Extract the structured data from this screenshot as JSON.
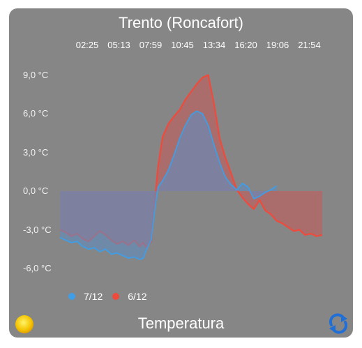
{
  "widget": {
    "title": "Trento (Roncafort)",
    "footer": "Temperatura",
    "weather_icon": "sun-icon",
    "refresh_icon": "refresh-icon"
  },
  "colors": {
    "background": "#868686",
    "series_7_12": "#3f9ee6",
    "series_6_12": "#ef4a3c",
    "zero_band": "#a57480"
  },
  "chart_data": {
    "type": "area",
    "title": "Trento (Roncafort)",
    "xlabel": "",
    "ylabel": "",
    "x_tick_labels": [
      "02:25",
      "05:13",
      "07:59",
      "10:45",
      "13:34",
      "16:20",
      "19:06",
      "21:54"
    ],
    "y_tick_labels": [
      "9,0 °C",
      "6,0 °C",
      "3,0 °C",
      "0,0 °C",
      "-3,0 °C",
      "-6,0 °C"
    ],
    "y_ticks": [
      9,
      6,
      3,
      0,
      -3,
      -6
    ],
    "ylim": [
      -7,
      10
    ],
    "xlim_hours": [
      1.0,
      24.0
    ],
    "legend": [
      "7/12",
      "6/12"
    ],
    "series": [
      {
        "name": "7/12",
        "color": "#3f9ee6",
        "x_hours": [
          1.0,
          1.5,
          2.0,
          2.5,
          3.0,
          3.5,
          4.0,
          4.5,
          5.0,
          5.5,
          6.0,
          6.5,
          7.0,
          7.5,
          8.0,
          8.3,
          8.6,
          9.0,
          9.3,
          9.6,
          10.0,
          10.5,
          11.0,
          11.5,
          12.0,
          12.5,
          13.0,
          13.5,
          14.0,
          14.5,
          15.0,
          15.5,
          16.0,
          16.5,
          17.0,
          17.5,
          18.0,
          18.5,
          19.0,
          19.5,
          20.0
        ],
        "values": [
          -3.6,
          -3.8,
          -4.0,
          -3.9,
          -4.3,
          -4.5,
          -4.4,
          -4.7,
          -4.5,
          -4.9,
          -4.8,
          -5.0,
          -5.2,
          -5.1,
          -5.3,
          -5.2,
          -4.5,
          -3.8,
          -1.5,
          0.3,
          0.8,
          1.6,
          2.8,
          4.1,
          5.1,
          5.9,
          6.2,
          6.0,
          5.1,
          3.6,
          2.2,
          1.1,
          0.5,
          0.1,
          0.6,
          0.3,
          -0.6,
          -0.4,
          -0.1,
          0.1,
          0.4
        ]
      },
      {
        "name": "6/12",
        "color": "#ef4a3c",
        "x_hours": [
          1.0,
          1.5,
          2.0,
          2.5,
          3.0,
          3.5,
          4.0,
          4.5,
          5.0,
          5.5,
          6.0,
          6.5,
          7.0,
          7.5,
          8.0,
          8.3,
          8.6,
          9.0,
          9.3,
          9.6,
          10.0,
          10.5,
          11.0,
          11.5,
          12.0,
          12.5,
          13.0,
          13.5,
          14.0,
          14.5,
          15.0,
          15.5,
          16.0,
          16.5,
          17.0,
          17.5,
          18.0,
          18.5,
          19.0,
          19.5,
          20.0,
          20.5,
          21.0,
          21.5,
          22.0,
          22.5,
          23.0,
          23.5,
          24.0
        ],
        "values": [
          -3.0,
          -3.2,
          -3.5,
          -3.3,
          -3.7,
          -3.9,
          -3.5,
          -3.1,
          -3.4,
          -3.8,
          -4.1,
          -3.9,
          -4.2,
          -3.8,
          -4.3,
          -4.0,
          -4.4,
          -3.9,
          -1.0,
          1.9,
          4.2,
          5.2,
          5.8,
          6.3,
          7.1,
          7.7,
          8.3,
          8.8,
          9.0,
          6.8,
          4.1,
          2.6,
          1.4,
          0.1,
          -0.5,
          -1.0,
          -1.4,
          -0.7,
          -1.5,
          -1.8,
          -2.3,
          -2.5,
          -2.8,
          -3.1,
          -3.0,
          -3.4,
          -3.3,
          -3.5,
          -3.4
        ]
      }
    ]
  }
}
